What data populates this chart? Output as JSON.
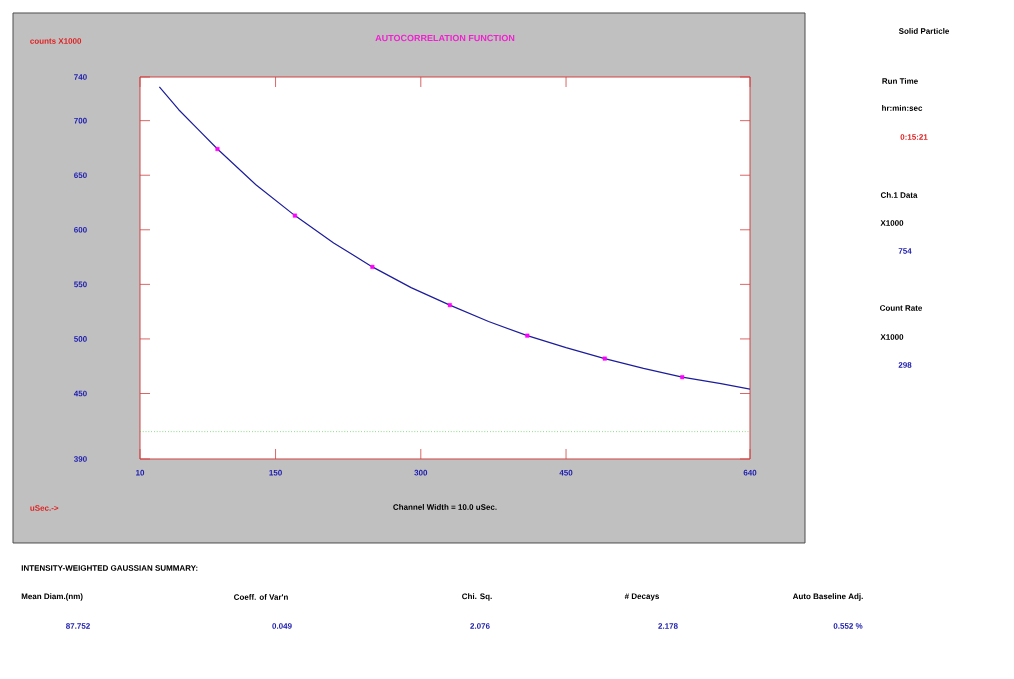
{
  "chart_data": {
    "type": "line",
    "title": "AUTOCORRELATION FUNCTION",
    "ylabel": "counts X1000",
    "xlabel": "uSec.->",
    "xlim": [
      10,
      640
    ],
    "xticks": [
      10,
      150,
      300,
      450,
      640
    ],
    "ylim": [
      390,
      740
    ],
    "yticks": [
      390,
      450,
      500,
      550,
      600,
      650,
      700,
      740
    ],
    "grid": false,
    "legend": false,
    "series": [
      {
        "color": "#1c1c9c",
        "x": [
          30,
          50,
          70,
          90,
          130,
          170,
          210,
          250,
          290,
          330,
          370,
          410,
          450,
          490,
          530,
          570,
          610,
          640
        ],
        "values": [
          731,
          710,
          692,
          674,
          641,
          613,
          588,
          566,
          547,
          531,
          516,
          503,
          492,
          482,
          473,
          465,
          459,
          454
        ]
      },
      {
        "type": "scatter",
        "marker": "square",
        "color": "#ff00ff",
        "x": [
          90,
          170,
          250,
          330,
          410,
          490,
          570
        ],
        "values": [
          674,
          613,
          566,
          531,
          503,
          482,
          465
        ]
      }
    ],
    "ref_lines": [
      {
        "axis": "y",
        "value": 415,
        "color": "#33cc33",
        "line_style": "dotted"
      }
    ],
    "annotations": [
      "Channel Width = 10.0 uSec.",
      "Solid Particle",
      "Run Time",
      "hr:min:sec",
      "0:15:21",
      "Ch.1 Data",
      "X1000",
      "754",
      "Count Rate",
      "X1000",
      "298",
      "INTENSITY-WEIGHTED GAUSSIAN SUMMARY:",
      "Mean Diam.(nm)",
      "Coeff. of Var'n",
      "Chi. Sq.",
      "# Decays",
      "Auto Baseline Adj.",
      "87.752",
      "0.049",
      "2.076",
      "2.178",
      "0.552 %"
    ]
  }
}
